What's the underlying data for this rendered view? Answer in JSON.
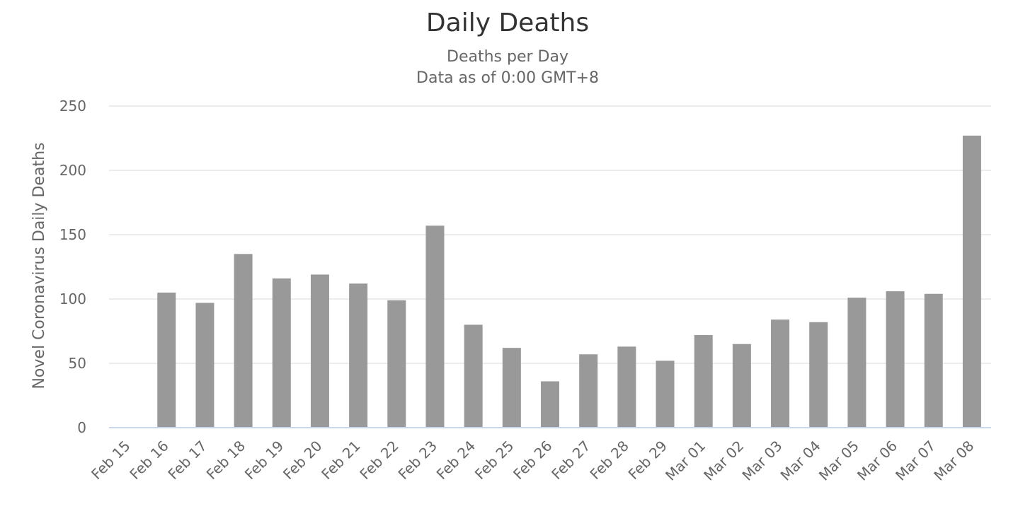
{
  "chart_data": {
    "type": "bar",
    "title": "Daily Deaths",
    "subtitle_lines": [
      "Deaths per Day",
      "Data as of 0:00 GMT+8"
    ],
    "ylabel": "Novel Coronavirus Daily Deaths",
    "xlabel": "",
    "ylim": [
      0,
      250
    ],
    "yticks": [
      0,
      50,
      100,
      150,
      200,
      250
    ],
    "grid": true,
    "legend": "none",
    "bar_color": "#999999",
    "categories": [
      "Feb 15",
      "Feb 16",
      "Feb 17",
      "Feb 18",
      "Feb 19",
      "Feb 20",
      "Feb 21",
      "Feb 22",
      "Feb 23",
      "Feb 24",
      "Feb 25",
      "Feb 26",
      "Feb 27",
      "Feb 28",
      "Feb 29",
      "Mar 01",
      "Mar 02",
      "Mar 03",
      "Mar 04",
      "Mar 05",
      "Mar 06",
      "Mar 07",
      "Mar 08"
    ],
    "values": [
      0,
      105,
      97,
      135,
      116,
      119,
      112,
      99,
      157,
      80,
      62,
      36,
      57,
      63,
      52,
      72,
      65,
      84,
      82,
      101,
      106,
      104,
      227
    ]
  }
}
